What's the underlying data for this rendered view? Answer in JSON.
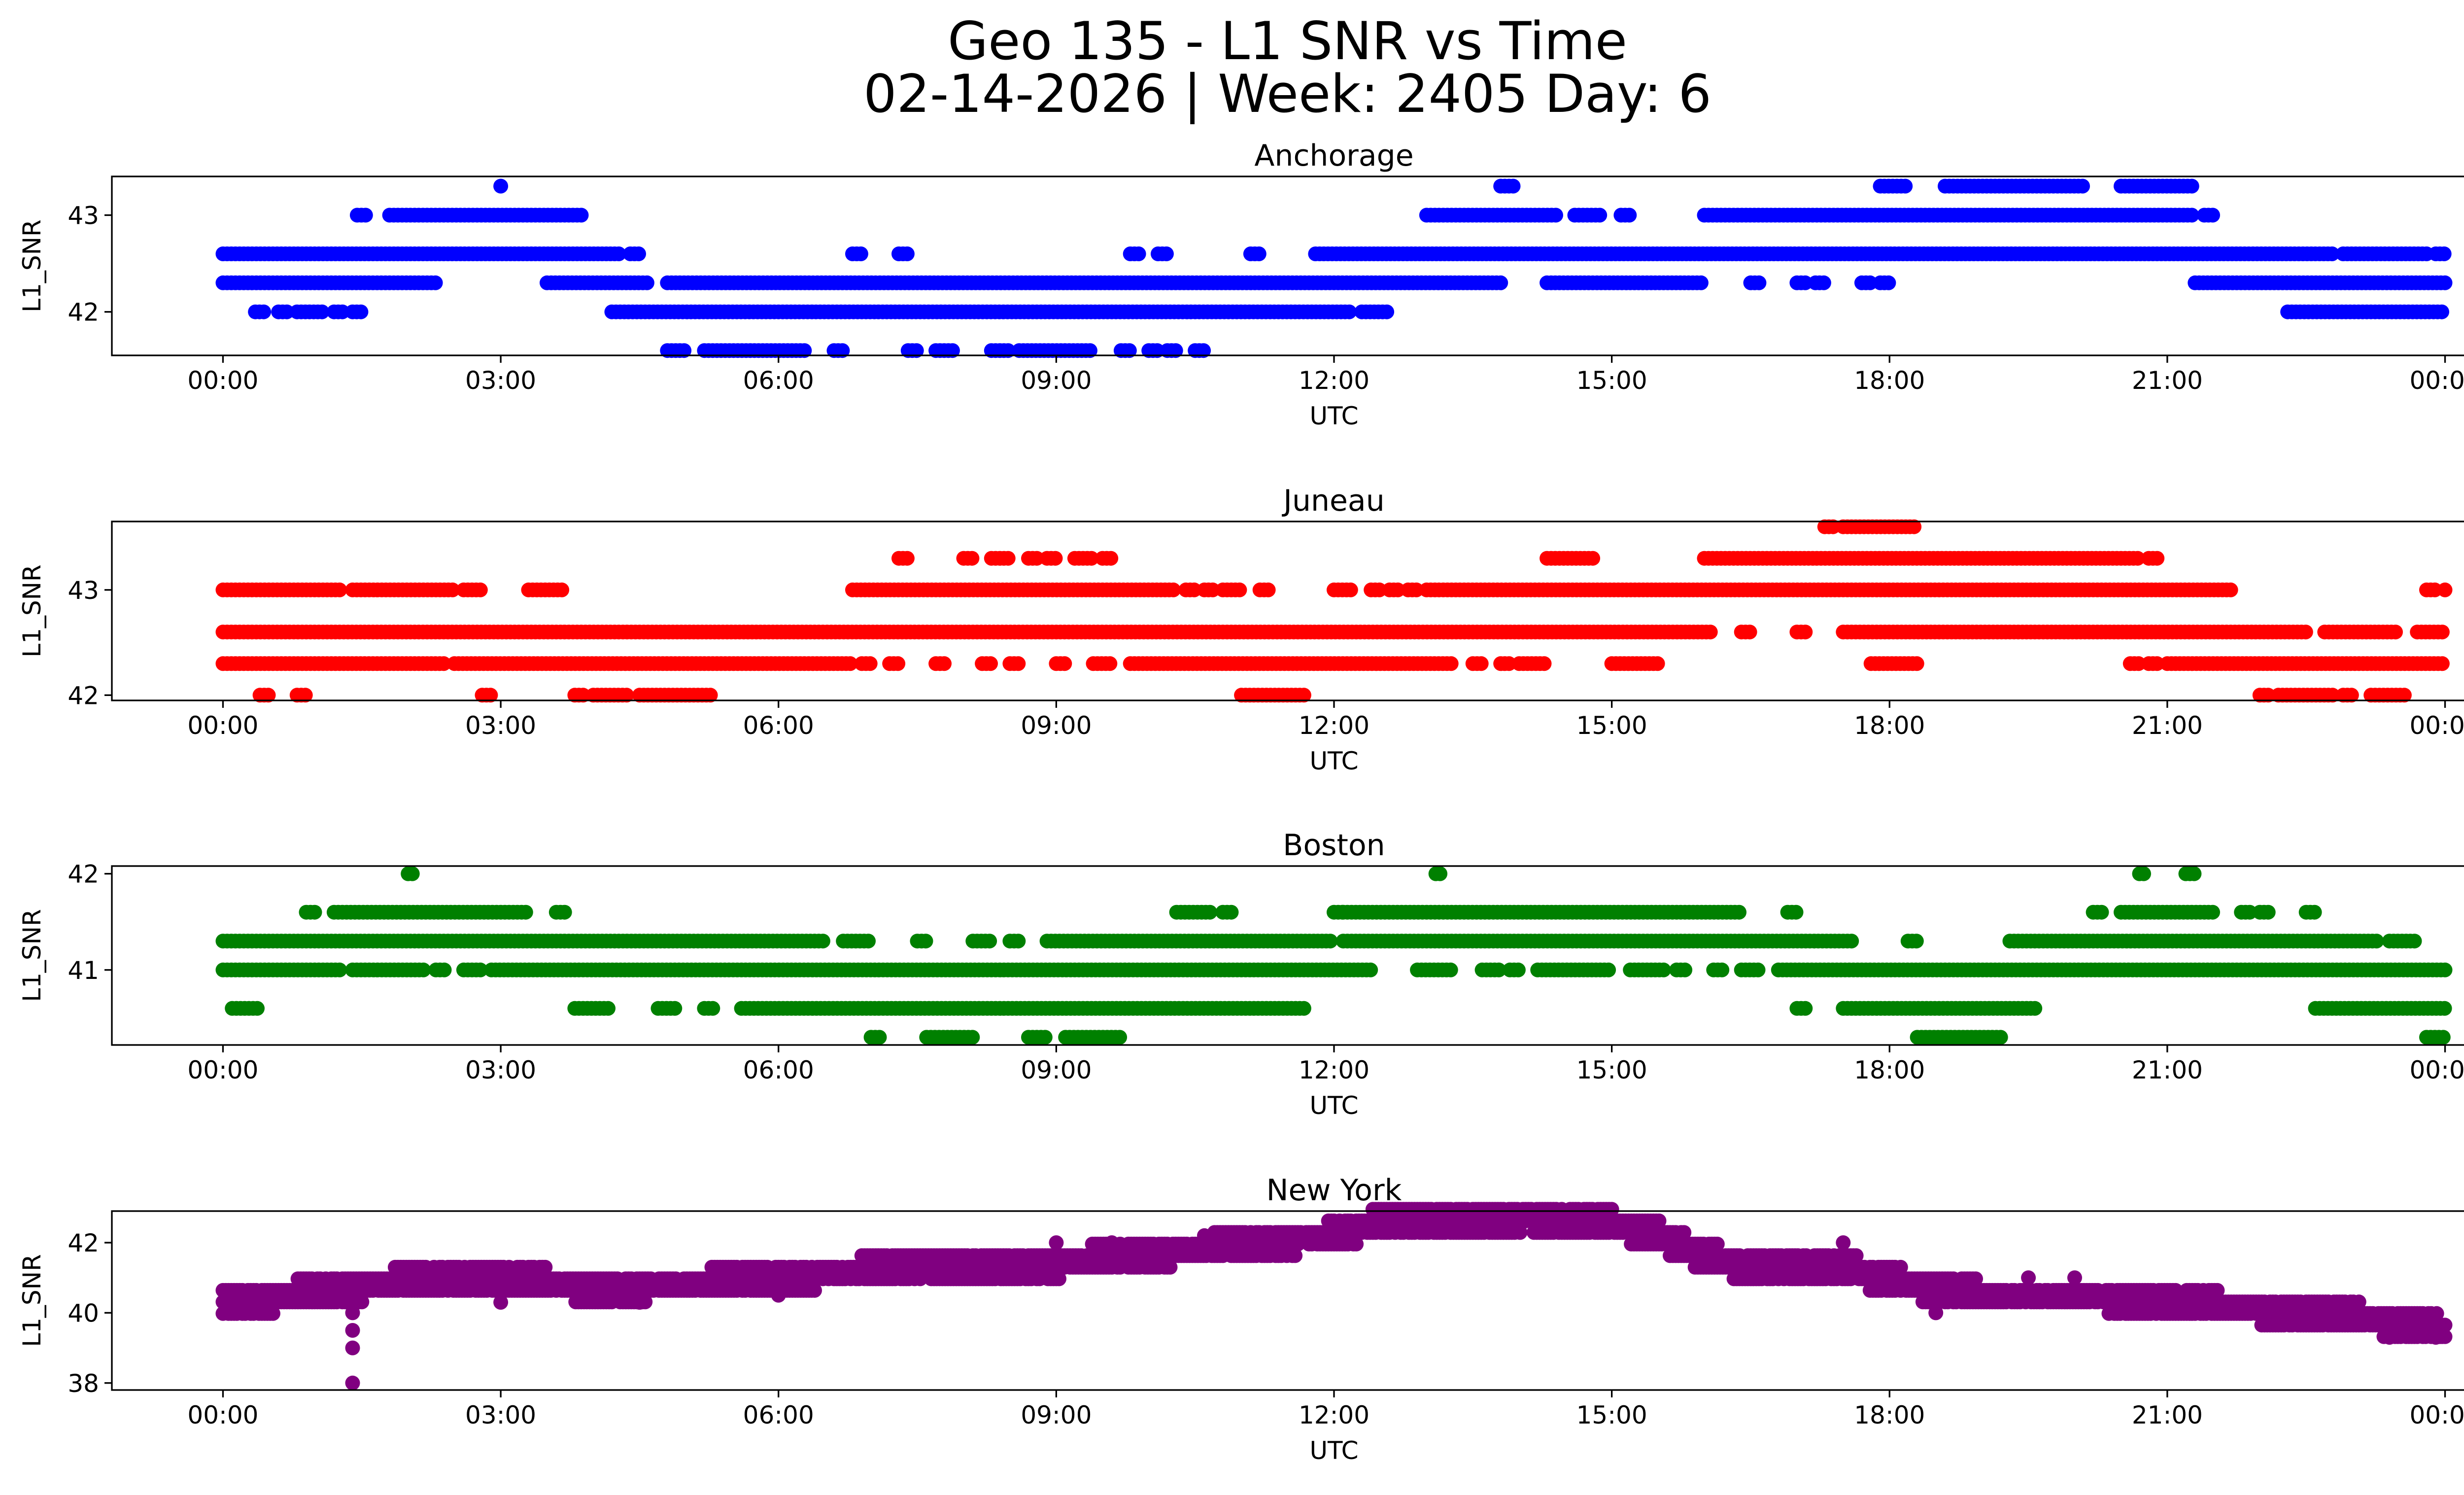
{
  "figure": {
    "title_line1": "Geo 135 - L1 SNR vs Time",
    "title_line2": "02-14-2026 | Week: 2405 Day: 6"
  },
  "chart_data": [
    {
      "type": "scatter",
      "title": "Anchorage",
      "xlabel": "UTC",
      "ylabel": "L1_SNR",
      "color": "#0000ff",
      "x_unit": "hours UTC",
      "xlim": [
        -1.2,
        25.2
      ],
      "x_ticks": [
        0,
        3,
        6,
        9,
        12,
        15,
        18,
        21,
        24
      ],
      "x_tick_labels": [
        "00:00",
        "03:00",
        "06:00",
        "09:00",
        "12:00",
        "15:00",
        "18:00",
        "21:00",
        "00:00"
      ],
      "ylim": [
        41.55,
        43.4
      ],
      "y_ticks": [
        42,
        43
      ],
      "y_tick_labels": [
        "42",
        "43"
      ],
      "points": {
        "43.3": [
          [
            3.0,
            3.0
          ],
          [
            13.8,
            13.95
          ],
          [
            17.9,
            18.2
          ],
          [
            18.6,
            20.1
          ],
          [
            20.5,
            21.3
          ]
        ],
        "43.0": [
          [
            1.45,
            1.55
          ],
          [
            1.8,
            3.9
          ],
          [
            13.0,
            14.4
          ],
          [
            14.6,
            14.9
          ],
          [
            15.1,
            15.2
          ],
          [
            16.0,
            21.3
          ],
          [
            21.4,
            21.5
          ]
        ],
        "42.6": [
          [
            0.0,
            4.3
          ],
          [
            4.4,
            4.5
          ],
          [
            6.8,
            6.9
          ],
          [
            7.3,
            7.4
          ],
          [
            9.8,
            9.9
          ],
          [
            10.1,
            10.2
          ],
          [
            11.1,
            11.2
          ],
          [
            11.8,
            22.8
          ],
          [
            22.9,
            23.8
          ],
          [
            23.9,
            24.0
          ]
        ],
        "42.3": [
          [
            0.0,
            2.3
          ],
          [
            3.5,
            4.6
          ],
          [
            4.8,
            13.8
          ],
          [
            14.3,
            16.0
          ],
          [
            16.5,
            16.6
          ],
          [
            17.0,
            17.1
          ],
          [
            17.2,
            17.3
          ],
          [
            17.7,
            17.8
          ],
          [
            17.9,
            18.0
          ],
          [
            21.3,
            24.0
          ]
        ],
        "42.0": [
          [
            0.35,
            0.45
          ],
          [
            0.6,
            0.7
          ],
          [
            0.8,
            1.1
          ],
          [
            1.2,
            1.3
          ],
          [
            1.4,
            1.5
          ],
          [
            4.2,
            12.2
          ],
          [
            12.3,
            12.6
          ],
          [
            22.3,
            24.0
          ]
        ],
        "41.6": [
          [
            4.8,
            5.0
          ],
          [
            5.2,
            6.3
          ],
          [
            6.6,
            6.7
          ],
          [
            7.4,
            7.5
          ],
          [
            7.7,
            7.9
          ],
          [
            8.3,
            8.5
          ],
          [
            8.6,
            9.4
          ],
          [
            9.7,
            9.8
          ],
          [
            10.0,
            10.1
          ],
          [
            10.2,
            10.3
          ],
          [
            10.5,
            10.6
          ]
        ]
      }
    },
    {
      "type": "scatter",
      "title": "Juneau",
      "xlabel": "UTC",
      "ylabel": "L1_SNR",
      "color": "#ff0000",
      "x_unit": "hours UTC",
      "xlim": [
        -1.2,
        25.2
      ],
      "x_ticks": [
        0,
        3,
        6,
        9,
        12,
        15,
        18,
        21,
        24
      ],
      "x_tick_labels": [
        "00:00",
        "03:00",
        "06:00",
        "09:00",
        "12:00",
        "15:00",
        "18:00",
        "21:00",
        "00:00"
      ],
      "ylim": [
        41.95,
        43.65
      ],
      "y_ticks": [
        42,
        43
      ],
      "y_tick_labels": [
        "42",
        "43"
      ],
      "points": {
        "43.6": [
          [
            17.3,
            17.4
          ],
          [
            17.5,
            18.3
          ]
        ],
        "43.3": [
          [
            7.3,
            7.4
          ],
          [
            8.0,
            8.1
          ],
          [
            8.3,
            8.5
          ],
          [
            8.7,
            8.8
          ],
          [
            8.9,
            9.0
          ],
          [
            9.2,
            9.4
          ],
          [
            9.5,
            9.6
          ],
          [
            14.3,
            14.8
          ],
          [
            16.0,
            20.7
          ],
          [
            20.8,
            20.9
          ]
        ],
        "43.0": [
          [
            0.0,
            1.3
          ],
          [
            1.4,
            2.5
          ],
          [
            2.6,
            2.8
          ],
          [
            3.3,
            3.7
          ],
          [
            6.8,
            10.3
          ],
          [
            10.4,
            10.5
          ],
          [
            10.6,
            10.7
          ],
          [
            10.8,
            11.0
          ],
          [
            11.2,
            11.3
          ],
          [
            12.0,
            12.2
          ],
          [
            12.4,
            12.5
          ],
          [
            12.6,
            12.7
          ],
          [
            12.8,
            12.9
          ],
          [
            13.0,
            21.7
          ],
          [
            23.8,
            23.9
          ],
          [
            24.0,
            24.0
          ]
        ],
        "42.6": [
          [
            0.0,
            16.1
          ],
          [
            16.4,
            16.5
          ],
          [
            17.0,
            17.1
          ],
          [
            17.5,
            22.5
          ],
          [
            22.7,
            23.5
          ],
          [
            23.7,
            24.0
          ]
        ],
        "42.3": [
          [
            0.0,
            2.4
          ],
          [
            2.5,
            6.8
          ],
          [
            6.9,
            7.0
          ],
          [
            7.2,
            7.3
          ],
          [
            7.7,
            7.8
          ],
          [
            8.2,
            8.3
          ],
          [
            8.5,
            8.6
          ],
          [
            9.0,
            9.1
          ],
          [
            9.4,
            9.6
          ],
          [
            9.8,
            13.3
          ],
          [
            13.5,
            13.6
          ],
          [
            13.8,
            13.9
          ],
          [
            14.0,
            14.3
          ],
          [
            15.0,
            15.5
          ],
          [
            17.8,
            18.3
          ],
          [
            20.6,
            20.7
          ],
          [
            20.8,
            20.9
          ],
          [
            21.0,
            24.0
          ]
        ],
        "42.0": [
          [
            0.4,
            0.5
          ],
          [
            0.8,
            0.9
          ],
          [
            2.8,
            2.9
          ],
          [
            3.8,
            3.9
          ],
          [
            4.0,
            4.4
          ],
          [
            4.5,
            5.3
          ],
          [
            11.0,
            11.7
          ],
          [
            22.0,
            22.1
          ],
          [
            22.2,
            22.8
          ],
          [
            22.9,
            23.0
          ],
          [
            23.2,
            23.6
          ]
        ]
      }
    },
    {
      "type": "scatter",
      "title": "Boston",
      "xlabel": "UTC",
      "ylabel": "L1_SNR",
      "color": "#008000",
      "x_unit": "hours UTC",
      "xlim": [
        -1.2,
        25.2
      ],
      "x_ticks": [
        0,
        3,
        6,
        9,
        12,
        15,
        18,
        21,
        24
      ],
      "x_tick_labels": [
        "00:00",
        "03:00",
        "06:00",
        "09:00",
        "12:00",
        "15:00",
        "18:00",
        "21:00",
        "00:00"
      ],
      "ylim": [
        40.22,
        42.08
      ],
      "y_ticks": [
        41,
        42
      ],
      "y_tick_labels": [
        "41",
        "42"
      ],
      "points": {
        "42.0": [
          [
            2.0,
            2.05
          ],
          [
            13.1,
            13.15
          ],
          [
            20.7,
            20.75
          ],
          [
            21.2,
            21.3
          ]
        ],
        "41.6": [
          [
            0.9,
            1.0
          ],
          [
            1.2,
            3.3
          ],
          [
            3.6,
            3.7
          ],
          [
            10.3,
            10.7
          ],
          [
            10.8,
            10.9
          ],
          [
            12.0,
            12.1
          ],
          [
            12.1,
            16.4
          ],
          [
            16.9,
            17.0
          ],
          [
            20.2,
            20.3
          ],
          [
            20.5,
            21.5
          ],
          [
            21.8,
            21.9
          ],
          [
            22.0,
            22.1
          ],
          [
            22.5,
            22.6
          ]
        ],
        "41.3": [
          [
            0.0,
            6.5
          ],
          [
            6.7,
            7.0
          ],
          [
            7.5,
            7.6
          ],
          [
            8.1,
            8.3
          ],
          [
            8.5,
            8.6
          ],
          [
            8.9,
            12.0
          ],
          [
            12.1,
            17.6
          ],
          [
            18.2,
            18.3
          ],
          [
            19.3,
            23.3
          ],
          [
            23.4,
            23.7
          ]
        ],
        "41.0": [
          [
            0.0,
            1.3
          ],
          [
            1.4,
            2.2
          ],
          [
            2.3,
            2.4
          ],
          [
            2.6,
            2.8
          ],
          [
            2.9,
            12.4
          ],
          [
            12.9,
            13.3
          ],
          [
            13.6,
            13.8
          ],
          [
            13.9,
            14.0
          ],
          [
            14.2,
            15.0
          ],
          [
            15.2,
            15.6
          ],
          [
            15.7,
            15.8
          ],
          [
            16.1,
            16.2
          ],
          [
            16.4,
            16.6
          ],
          [
            16.8,
            24.0
          ]
        ],
        "40.6": [
          [
            0.1,
            0.4
          ],
          [
            3.8,
            4.2
          ],
          [
            4.7,
            4.9
          ],
          [
            5.2,
            5.3
          ],
          [
            5.6,
            11.7
          ],
          [
            17.0,
            17.1
          ],
          [
            17.5,
            19.6
          ],
          [
            22.6,
            24.0
          ]
        ],
        "40.3": [
          [
            7.0,
            7.1
          ],
          [
            7.6,
            8.1
          ],
          [
            8.7,
            8.9
          ],
          [
            9.1,
            9.7
          ],
          [
            18.3,
            19.2
          ],
          [
            23.8,
            24.0
          ]
        ]
      }
    },
    {
      "type": "scatter",
      "title": "New York",
      "xlabel": "UTC",
      "ylabel": "L1_SNR",
      "color": "#800080",
      "x_unit": "hours UTC",
      "xlim": [
        -1.2,
        25.2
      ],
      "x_ticks": [
        0,
        3,
        6,
        9,
        12,
        15,
        18,
        21,
        24
      ],
      "x_tick_labels": [
        "00:00",
        "03:00",
        "06:00",
        "09:00",
        "12:00",
        "15:00",
        "18:00",
        "21:00",
        "00:00"
      ],
      "ylim": [
        37.8,
        42.9
      ],
      "y_ticks": [
        38,
        40,
        42
      ],
      "y_tick_labels": [
        "38",
        "40",
        "42"
      ],
      "trend": [
        [
          0,
          40.2
        ],
        [
          0.5,
          40.4
        ],
        [
          1.0,
          40.6
        ],
        [
          2.0,
          40.9
        ],
        [
          3.0,
          41.0
        ],
        [
          4.0,
          40.7
        ],
        [
          5.0,
          40.8
        ],
        [
          6.0,
          41.0
        ],
        [
          7.0,
          41.2
        ],
        [
          8.0,
          41.3
        ],
        [
          9.0,
          41.4
        ],
        [
          10.0,
          41.7
        ],
        [
          11.0,
          41.9
        ],
        [
          12.0,
          42.2
        ],
        [
          12.5,
          42.6
        ],
        [
          13.0,
          42.7
        ],
        [
          14.0,
          42.7
        ],
        [
          15.0,
          42.5
        ],
        [
          15.5,
          42.2
        ],
        [
          16.0,
          41.6
        ],
        [
          16.5,
          41.3
        ],
        [
          17.5,
          41.3
        ],
        [
          18.0,
          40.9
        ],
        [
          19.0,
          40.5
        ],
        [
          20.0,
          40.5
        ],
        [
          21.0,
          40.3
        ],
        [
          22.0,
          40.1
        ],
        [
          23.0,
          39.9
        ],
        [
          24.0,
          39.5
        ]
      ],
      "spread": 0.9,
      "outliers": [
        [
          0.05,
          40.6
        ],
        [
          1.4,
          39.5
        ],
        [
          1.4,
          39.0
        ],
        [
          1.4,
          38.0
        ],
        [
          1.4,
          40.0
        ],
        [
          3.0,
          40.3
        ],
        [
          4.5,
          40.3
        ],
        [
          6.0,
          40.5
        ],
        [
          9.0,
          42.0
        ],
        [
          9.6,
          42.0
        ],
        [
          10.6,
          42.2
        ],
        [
          11.6,
          42.2
        ],
        [
          12.6,
          42.9
        ],
        [
          14.5,
          42.9
        ],
        [
          17.5,
          42.0
        ],
        [
          18.5,
          40.0
        ],
        [
          19.5,
          41.0
        ],
        [
          20.0,
          41.0
        ],
        [
          22.5,
          39.7
        ],
        [
          23.4,
          39.3
        ],
        [
          23.9,
          39.3
        ]
      ]
    }
  ]
}
